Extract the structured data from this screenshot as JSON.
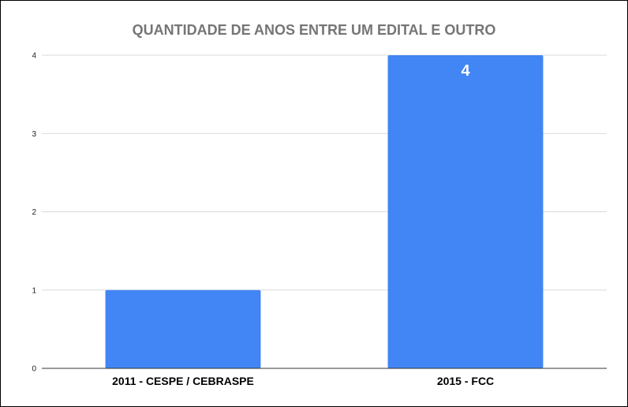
{
  "chart_data": {
    "type": "bar",
    "title": "QUANTIDADE DE ANOS ENTRE UM EDITAL E OUTRO",
    "xlabel": "",
    "ylabel": "",
    "categories": [
      "2011 - CESPE / CEBRASPE",
      "2015 - FCC"
    ],
    "values": [
      1,
      4
    ],
    "data_labels": [
      "",
      "4"
    ],
    "ylim": [
      0,
      4
    ],
    "yticks": [
      "0",
      "1",
      "2",
      "3",
      "4"
    ],
    "grid": true,
    "legend": "none",
    "colors": {
      "bar": "#4285f4",
      "title": "#757575",
      "grid": "#d9d9d9",
      "axis": "#333333",
      "tick_text": "#222222",
      "category_text": "#000000",
      "data_label": "#ffffff"
    }
  }
}
